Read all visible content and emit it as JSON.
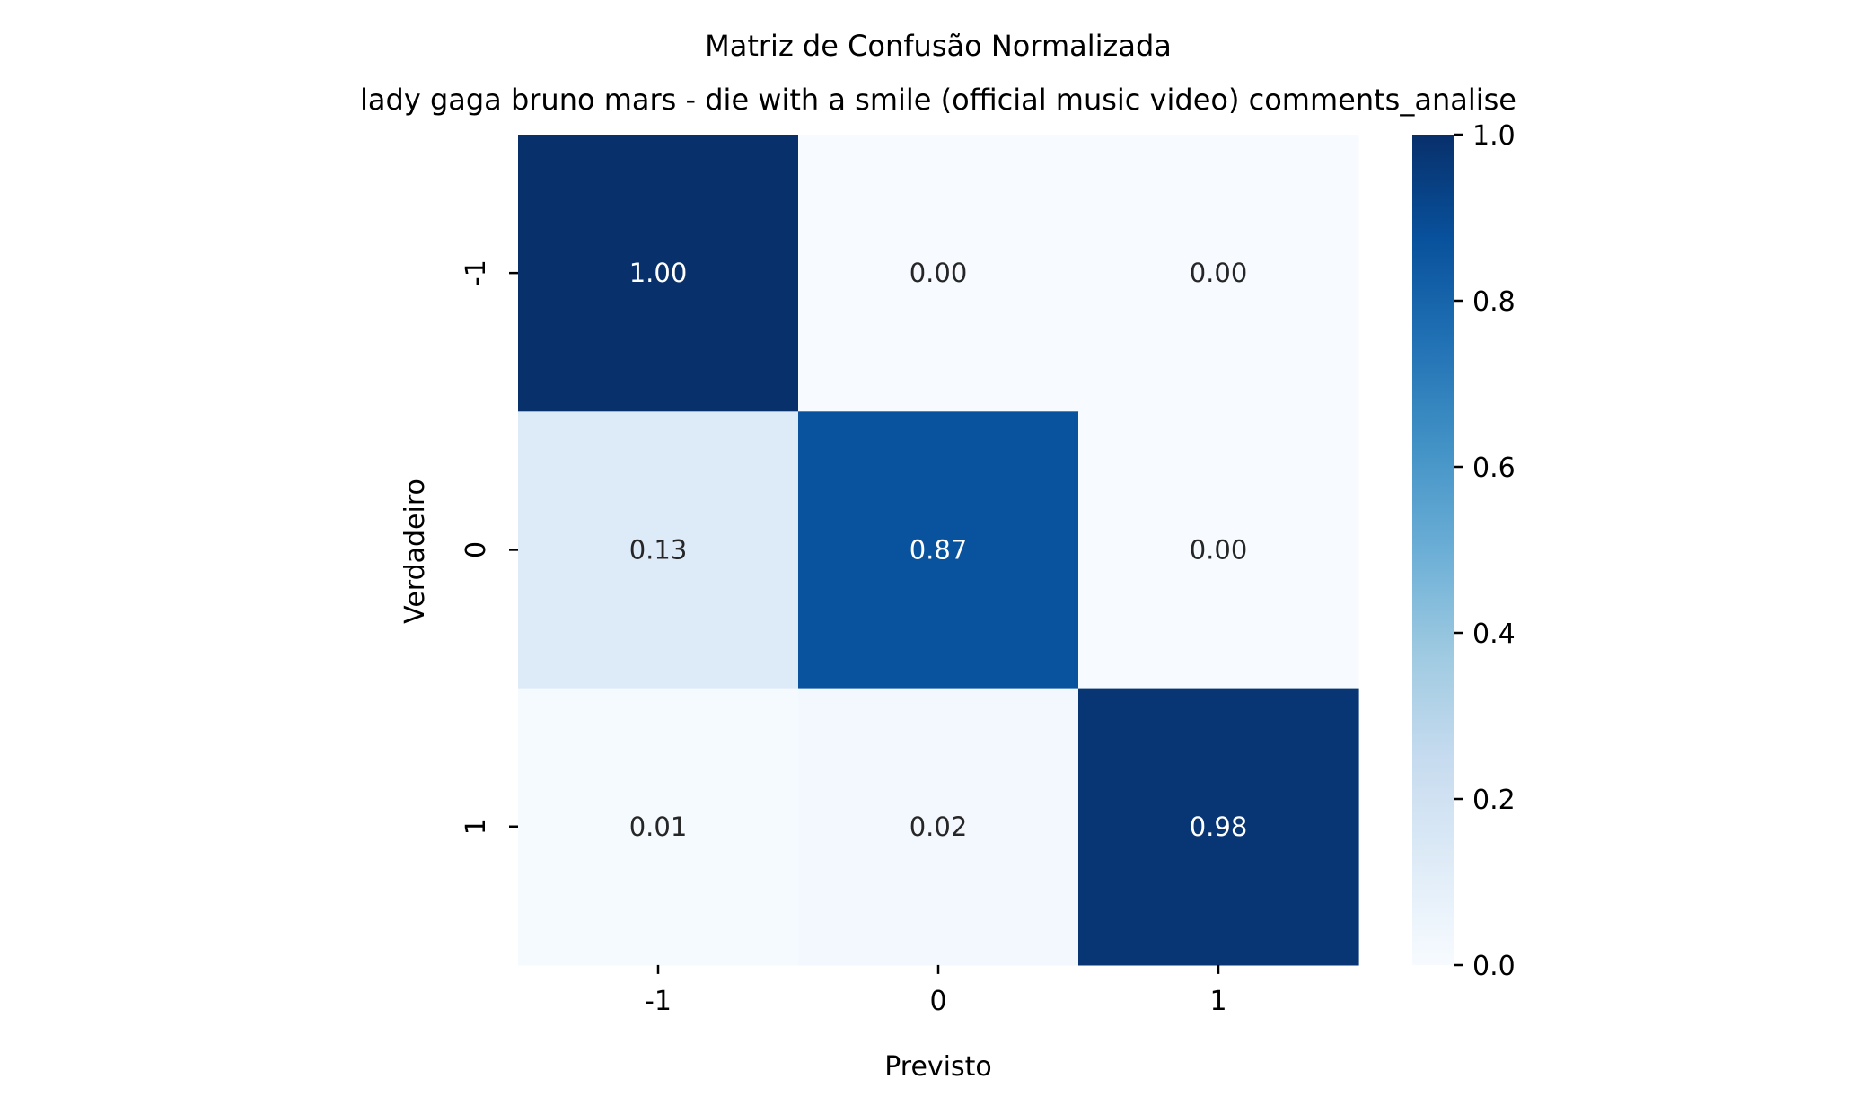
{
  "chart_data": {
    "type": "heatmap",
    "title": "Matriz de Confusão Normalizada",
    "subtitle": "lady gaga bruno mars - die with a smile (official music video) comments_analise",
    "xlabel": "Previsto",
    "ylabel": "Verdadeiro",
    "x_categories": [
      "-1",
      "0",
      "1"
    ],
    "y_categories": [
      "-1",
      "0",
      "1"
    ],
    "values": [
      [
        1.0,
        0.0,
        0.0
      ],
      [
        0.13,
        0.87,
        0.0
      ],
      [
        0.01,
        0.02,
        0.98
      ]
    ],
    "value_labels": [
      [
        "1.00",
        "0.00",
        "0.00"
      ],
      [
        "0.13",
        "0.87",
        "0.00"
      ],
      [
        "0.01",
        "0.02",
        "0.98"
      ]
    ],
    "colormap": "Blues",
    "colormap_stops": [
      "#f7fbff",
      "#deebf7",
      "#c6dbef",
      "#9ecae1",
      "#6baed6",
      "#4292c6",
      "#2171b5",
      "#08519c",
      "#08306b"
    ],
    "colorbar": {
      "range": [
        0.0,
        1.0
      ],
      "ticks": [
        0.0,
        0.2,
        0.4,
        0.6,
        0.8,
        1.0
      ],
      "tick_labels": [
        "0.0",
        "0.2",
        "0.4",
        "0.6",
        "0.8",
        "1.0"
      ]
    }
  }
}
